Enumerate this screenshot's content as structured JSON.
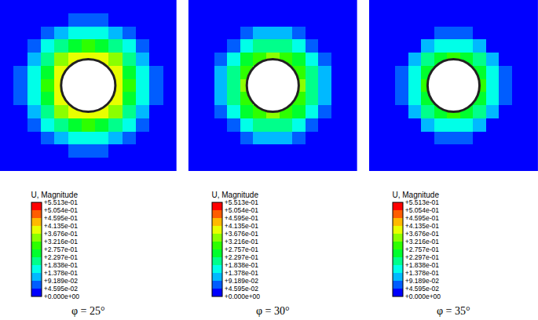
{
  "chart_data": [
    {
      "type": "heatmap",
      "title": "φ = 25°",
      "tick_labels": false,
      "grid": false,
      "colors": [
        "#0000ff",
        "#005dff",
        "#00b9ff",
        "#00ffe8",
        "#00ff8b",
        "#00ff2e",
        "#2eff00",
        "#8bff00",
        "#e8ff00",
        "#ffb900",
        "#ff5d00",
        "#ff0000"
      ],
      "colorbar": {
        "title": "U, Magnitude",
        "range": [
          0,
          0.5513
        ],
        "ticks": [
          {
            "value": 0,
            "label": "+0.000e+00"
          },
          {
            "value": 0.04595,
            "label": "+4.595e-02"
          },
          {
            "value": 0.09189,
            "label": "+9.189e-02"
          },
          {
            "value": 0.1378,
            "label": "+1.378e-01"
          },
          {
            "value": 0.1838,
            "label": "+1.838e-01"
          },
          {
            "value": 0.2297,
            "label": "+2.297e-01"
          },
          {
            "value": 0.2757,
            "label": "+2.757e-01"
          },
          {
            "value": 0.3216,
            "label": "+3.216e-01"
          },
          {
            "value": 0.3676,
            "label": "+3.676e-01"
          },
          {
            "value": 0.4135,
            "label": "+4.135e-01"
          },
          {
            "value": 0.4595,
            "label": "+4.595e-01"
          },
          {
            "value": 0.5054,
            "label": "+5.054e-01"
          },
          {
            "value": 0.5513,
            "label": "+5.513e-01"
          }
        ]
      },
      "z": [
        [
          0,
          0,
          0,
          0,
          0,
          0.006,
          0.008,
          0.006,
          0,
          0,
          0,
          0,
          0
        ],
        [
          0,
          0,
          0,
          0.015,
          0.04,
          0.06,
          0.07,
          0.06,
          0.04,
          0.015,
          0,
          0,
          0
        ],
        [
          0,
          0,
          0.02,
          0.07,
          0.12,
          0.16,
          0.17,
          0.16,
          0.12,
          0.07,
          0.02,
          0,
          0
        ],
        [
          0,
          0.015,
          0.07,
          0.15,
          0.22,
          0.27,
          0.29,
          0.27,
          0.22,
          0.15,
          0.07,
          0.015,
          0
        ],
        [
          0,
          0.04,
          0.12,
          0.22,
          0.35,
          0.37,
          0.4,
          0.37,
          0.35,
          0.22,
          0.12,
          0.04,
          0
        ],
        [
          0.006,
          0.06,
          0.16,
          0.27,
          0.37,
          null,
          null,
          null,
          0.37,
          0.27,
          0.16,
          0.06,
          0.006
        ],
        [
          0.008,
          0.07,
          0.17,
          0.29,
          0.4,
          null,
          null,
          null,
          0.4,
          0.29,
          0.17,
          0.07,
          0.008
        ],
        [
          0.006,
          0.06,
          0.16,
          0.27,
          0.37,
          null,
          null,
          null,
          0.37,
          0.27,
          0.16,
          0.06,
          0.006
        ],
        [
          0,
          0.04,
          0.12,
          0.22,
          0.35,
          0.37,
          0.4,
          0.37,
          0.35,
          0.22,
          0.12,
          0.04,
          0
        ],
        [
          0,
          0.015,
          0.07,
          0.15,
          0.22,
          0.27,
          0.29,
          0.27,
          0.22,
          0.15,
          0.07,
          0.015,
          0
        ],
        [
          0,
          0,
          0.02,
          0.07,
          0.12,
          0.16,
          0.17,
          0.16,
          0.12,
          0.07,
          0.02,
          0,
          0
        ],
        [
          0,
          0,
          0,
          0.015,
          0.04,
          0.06,
          0.07,
          0.06,
          0.04,
          0.015,
          0,
          0,
          0
        ],
        [
          0,
          0,
          0,
          0,
          0,
          0.006,
          0.008,
          0.006,
          0,
          0,
          0,
          0,
          0
        ]
      ]
    },
    {
      "type": "heatmap",
      "title": "φ = 30°",
      "tick_labels": false,
      "grid": false,
      "colors": [
        "#0000ff",
        "#005dff",
        "#00b9ff",
        "#00ffe8",
        "#00ff8b",
        "#00ff2e",
        "#2eff00",
        "#8bff00",
        "#e8ff00",
        "#ffb900",
        "#ff5d00",
        "#ff0000"
      ],
      "colorbar": {
        "title": "U, Magnitude",
        "range": [
          0,
          0.5513
        ],
        "ticks": [
          {
            "value": 0,
            "label": "+0.000e+00"
          },
          {
            "value": 0.04595,
            "label": "+4.595e-02"
          },
          {
            "value": 0.09189,
            "label": "+9.189e-02"
          },
          {
            "value": 0.1378,
            "label": "+1.378e-01"
          },
          {
            "value": 0.1838,
            "label": "+1.838e-01"
          },
          {
            "value": 0.2297,
            "label": "+2.297e-01"
          },
          {
            "value": 0.2757,
            "label": "+2.757e-01"
          },
          {
            "value": 0.3216,
            "label": "+3.216e-01"
          },
          {
            "value": 0.3676,
            "label": "+3.676e-01"
          },
          {
            "value": 0.4135,
            "label": "+4.135e-01"
          },
          {
            "value": 0.4595,
            "label": "+4.595e-01"
          },
          {
            "value": 0.5054,
            "label": "+5.054e-01"
          },
          {
            "value": 0.5513,
            "label": "+5.513e-01"
          }
        ]
      },
      "z": [
        [
          0,
          0,
          0,
          0,
          0,
          0,
          0,
          0,
          0,
          0,
          0,
          0,
          0
        ],
        [
          0,
          0,
          0,
          0,
          0.01,
          0.025,
          0.03,
          0.025,
          0.01,
          0,
          0,
          0,
          0
        ],
        [
          0,
          0,
          0.005,
          0.03,
          0.07,
          0.1,
          0.11,
          0.1,
          0.07,
          0.03,
          0.005,
          0,
          0
        ],
        [
          0,
          0,
          0.03,
          0.09,
          0.15,
          0.2,
          0.22,
          0.2,
          0.15,
          0.09,
          0.03,
          0,
          0
        ],
        [
          0,
          0.01,
          0.07,
          0.15,
          0.24,
          0.3,
          0.33,
          0.3,
          0.24,
          0.15,
          0.07,
          0.01,
          0
        ],
        [
          0,
          0.025,
          0.1,
          0.2,
          0.3,
          null,
          null,
          null,
          0.3,
          0.2,
          0.1,
          0.025,
          0
        ],
        [
          0,
          0.03,
          0.11,
          0.22,
          0.33,
          null,
          null,
          null,
          0.33,
          0.22,
          0.11,
          0.03,
          0
        ],
        [
          0,
          0.025,
          0.1,
          0.2,
          0.3,
          null,
          null,
          null,
          0.3,
          0.2,
          0.1,
          0.025,
          0
        ],
        [
          0,
          0.01,
          0.07,
          0.15,
          0.24,
          0.3,
          0.33,
          0.3,
          0.24,
          0.15,
          0.07,
          0.01,
          0
        ],
        [
          0,
          0,
          0.03,
          0.09,
          0.15,
          0.2,
          0.22,
          0.2,
          0.15,
          0.09,
          0.03,
          0,
          0
        ],
        [
          0,
          0,
          0.005,
          0.03,
          0.07,
          0.1,
          0.11,
          0.1,
          0.07,
          0.03,
          0.005,
          0,
          0
        ],
        [
          0,
          0,
          0,
          0,
          0.01,
          0.025,
          0.03,
          0.025,
          0.01,
          0,
          0,
          0,
          0
        ],
        [
          0,
          0,
          0,
          0,
          0,
          0,
          0,
          0,
          0,
          0,
          0,
          0,
          0
        ]
      ]
    },
    {
      "type": "heatmap",
      "title": "φ = 35°",
      "tick_labels": false,
      "grid": false,
      "colors": [
        "#0000ff",
        "#005dff",
        "#00b9ff",
        "#00ffe8",
        "#00ff8b",
        "#00ff2e",
        "#2eff00",
        "#8bff00",
        "#e8ff00",
        "#ffb900",
        "#ff5d00",
        "#ff0000"
      ],
      "colorbar": {
        "title": "U, Magnitude",
        "range": [
          0,
          0.5513
        ],
        "ticks": [
          {
            "value": 0,
            "label": "+0.000e+00"
          },
          {
            "value": 0.04595,
            "label": "+4.595e-02"
          },
          {
            "value": 0.09189,
            "label": "+9.189e-02"
          },
          {
            "value": 0.1378,
            "label": "+1.378e-01"
          },
          {
            "value": 0.1838,
            "label": "+1.838e-01"
          },
          {
            "value": 0.2297,
            "label": "+2.297e-01"
          },
          {
            "value": 0.2757,
            "label": "+2.757e-01"
          },
          {
            "value": 0.3216,
            "label": "+3.216e-01"
          },
          {
            "value": 0.3676,
            "label": "+3.676e-01"
          },
          {
            "value": 0.4135,
            "label": "+4.135e-01"
          },
          {
            "value": 0.4595,
            "label": "+4.595e-01"
          },
          {
            "value": 0.5054,
            "label": "+5.054e-01"
          },
          {
            "value": 0.5513,
            "label": "+5.513e-01"
          }
        ]
      },
      "z": [
        [
          0,
          0,
          0,
          0,
          0,
          0,
          0,
          0,
          0,
          0,
          0,
          0,
          0
        ],
        [
          0,
          0,
          0,
          0,
          0,
          0,
          0.005,
          0,
          0,
          0,
          0,
          0,
          0
        ],
        [
          0,
          0,
          0,
          0.005,
          0.02,
          0.05,
          0.06,
          0.05,
          0.02,
          0.005,
          0,
          0,
          0
        ],
        [
          0,
          0,
          0.005,
          0.04,
          0.1,
          0.16,
          0.18,
          0.16,
          0.1,
          0.04,
          0.005,
          0,
          0
        ],
        [
          0,
          0,
          0.02,
          0.1,
          0.2,
          0.27,
          0.3,
          0.27,
          0.2,
          0.1,
          0.02,
          0,
          0
        ],
        [
          0,
          0,
          0.05,
          0.16,
          0.27,
          null,
          null,
          null,
          0.27,
          0.16,
          0.05,
          0,
          0
        ],
        [
          0,
          0.005,
          0.06,
          0.18,
          0.3,
          null,
          null,
          null,
          0.3,
          0.18,
          0.06,
          0.005,
          0
        ],
        [
          0,
          0,
          0.05,
          0.16,
          0.27,
          null,
          null,
          null,
          0.27,
          0.16,
          0.05,
          0,
          0
        ],
        [
          0,
          0,
          0.02,
          0.1,
          0.2,
          0.27,
          0.3,
          0.27,
          0.2,
          0.1,
          0.02,
          0,
          0
        ],
        [
          0,
          0,
          0.005,
          0.04,
          0.1,
          0.16,
          0.18,
          0.16,
          0.1,
          0.04,
          0.005,
          0,
          0
        ],
        [
          0,
          0,
          0,
          0.005,
          0.02,
          0.05,
          0.06,
          0.05,
          0.02,
          0.005,
          0,
          0,
          0
        ],
        [
          0,
          0,
          0,
          0,
          0,
          0,
          0.005,
          0,
          0,
          0,
          0,
          0,
          0
        ],
        [
          0,
          0,
          0,
          0,
          0,
          0,
          0,
          0,
          0,
          0,
          0,
          0,
          0
        ]
      ]
    }
  ]
}
